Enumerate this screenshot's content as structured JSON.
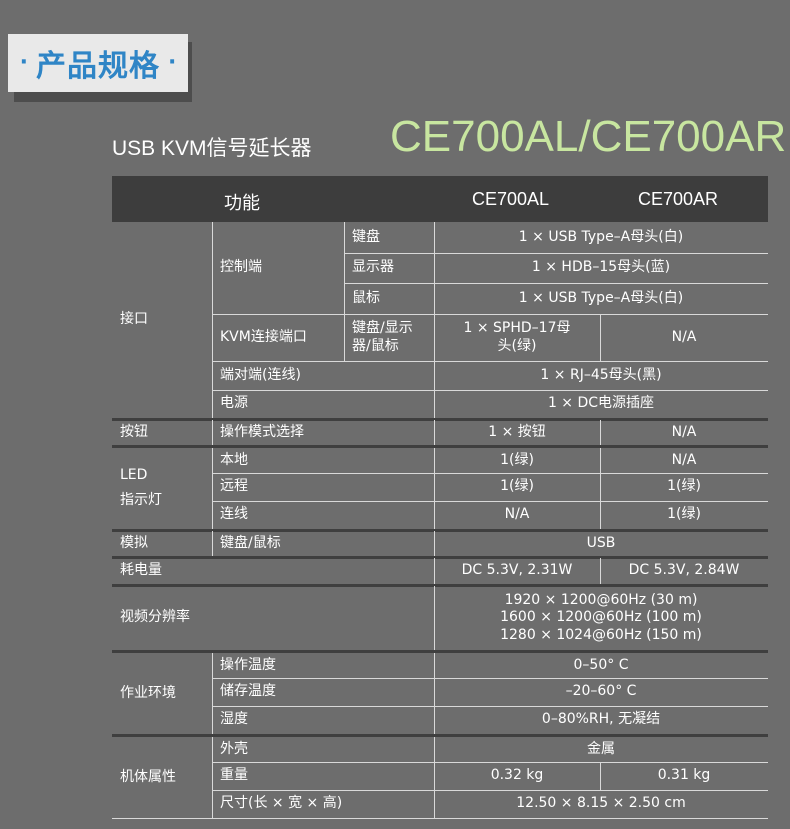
{
  "header": {
    "badge_title": "产品规格",
    "dot_left": "·",
    "dot_right": "·",
    "product_name": "USB KVM信号延长器",
    "model": "CE700AL/CE700AR"
  },
  "table": {
    "columns": [
      "功能",
      "CE700AL",
      "CE700AR"
    ],
    "rows": {
      "interface": "接口",
      "console": "控制端",
      "keyboard": "键盘",
      "keyboard_val": "1 × USB Type–A母头(白)",
      "display": "显示器",
      "display_val": "1 × HDB–15母头(蓝)",
      "mouse": "鼠标",
      "mouse_val": "1 × USB Type–A母头(白)",
      "kvm_port": "KVM连接端口",
      "kvm_sub": "键盘/显示器/鼠标",
      "kvm_al": "1 × SPHD–17母头(绿)",
      "kvm_ar": "N/A",
      "end_to_end": "端对端(连线)",
      "end_to_end_val": "1 × RJ–45母头(黑)",
      "power": "电源",
      "power_val": "1 × DC电源插座",
      "button": "按钮",
      "op_mode": "操作模式选择",
      "op_mode_al": "1 × 按钮",
      "op_mode_ar": "N/A",
      "led": "LED",
      "indicator": "指示灯",
      "local": "本地",
      "local_al": "1(绿)",
      "local_ar": "N/A",
      "remote": "远程",
      "remote_al": "1(绿)",
      "remote_ar": "1(绿)",
      "link": "连线",
      "link_al": "N/A",
      "link_ar": "1(绿)",
      "emulation": "模拟",
      "emulation_sub": "键盘/鼠标",
      "emulation_val": "USB",
      "power_consumption": "耗电量",
      "power_consumption_al": "DC 5.3V, 2.31W",
      "power_consumption_ar": "DC 5.3V, 2.84W",
      "video_res": "视频分辨率",
      "video_res_1": "1920 × 1200@60Hz (30 m)",
      "video_res_2": "1600 × 1200@60Hz (100 m)",
      "video_res_3": "1280 × 1024@60Hz (150 m)",
      "environment": "作业环境",
      "op_temp": "操作温度",
      "op_temp_val": "0–50° C",
      "storage_temp": "储存温度",
      "storage_temp_val": "–20–60° C",
      "humidity": "湿度",
      "humidity_val": "0–80%RH, 无凝结",
      "physical": "机体属性",
      "housing": "外壳",
      "housing_val": "金属",
      "weight": "重量",
      "weight_al": "0.32 kg",
      "weight_ar": "0.31 kg",
      "dimensions": "尺寸(长 × 宽 × 高)",
      "dimensions_val": "12.50 × 8.15 × 2.50 cm"
    }
  }
}
